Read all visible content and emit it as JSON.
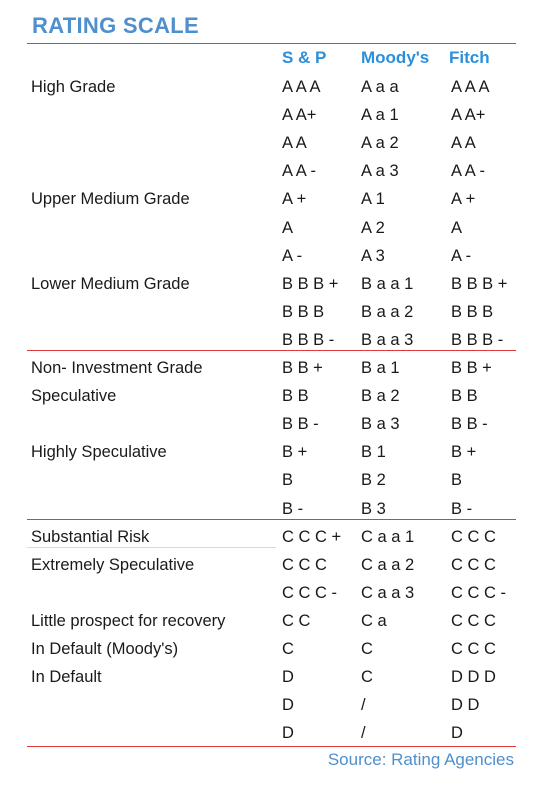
{
  "title": "RATING SCALE",
  "columns": [
    "S & P",
    "Moody's",
    "Fitch"
  ],
  "rows": [
    {
      "label": "High Grade",
      "sp": "A A A",
      "moodys": "A a a",
      "fitch": "A A A"
    },
    {
      "label": "",
      "sp": "A A+",
      "moodys": "A a 1",
      "fitch": "A A+"
    },
    {
      "label": "",
      "sp": "A A",
      "moodys": "A a 2",
      "fitch": "A A"
    },
    {
      "label": "",
      "sp": "A A -",
      "moodys": "A a 3",
      "fitch": "A A -"
    },
    {
      "label": "Upper Medium Grade",
      "sp": "A +",
      "moodys": "A 1",
      "fitch": "A +"
    },
    {
      "label": "",
      "sp": "A",
      "moodys": "A 2",
      "fitch": "A"
    },
    {
      "label": "",
      "sp": "A -",
      "moodys": "A 3",
      "fitch": "A -"
    },
    {
      "label": "Lower Medium Grade",
      "sp": "B B B +",
      "moodys": "B a a 1",
      "fitch": "B B B +"
    },
    {
      "label": "",
      "sp": "B B B",
      "moodys": "B a a 2",
      "fitch": "B B B"
    },
    {
      "label": "",
      "sp": "B B B -",
      "moodys": "B a a 3",
      "fitch": "B B B -"
    },
    {
      "label": "Non- Investment Grade",
      "sp": "B B +",
      "moodys": "B a 1",
      "fitch": "B B +"
    },
    {
      "label": "Speculative",
      "sp": "B B",
      "moodys": "B a 2",
      "fitch": "B B"
    },
    {
      "label": "",
      "sp": "B B  -",
      "moodys": "B a 3",
      "fitch": "B B -"
    },
    {
      "label": "Highly Speculative",
      "sp": "B +",
      "moodys": "B 1",
      "fitch": "B +"
    },
    {
      "label": "",
      "sp": "B",
      "moodys": "B 2",
      "fitch": "B"
    },
    {
      "label": "",
      "sp": "B -",
      "moodys": "B 3",
      "fitch": "B -"
    },
    {
      "label": "Substantial Risk",
      "sp": "C C C +",
      "moodys": "C a a 1",
      "fitch": "C C C"
    },
    {
      "label": "Extremely Speculative",
      "sp": "C C C",
      "moodys": "C a a 2",
      "fitch": "C C C"
    },
    {
      "label": "",
      "sp": "C C C -",
      "moodys": "C a a 3",
      "fitch": "C C C -"
    },
    {
      "label": "Little prospect for recovery",
      "sp": "C C",
      "moodys": "C a",
      "fitch": "C C  C"
    },
    {
      "label": "In Default  (Moody's)",
      "sp": "C",
      "moodys": "C",
      "fitch": "C C C"
    },
    {
      "label": "In Default",
      "sp": "D",
      "moodys": "C",
      "fitch": "D D D"
    },
    {
      "label": "",
      "sp": "D",
      "moodys": "/",
      "fitch": "D D"
    },
    {
      "label": "",
      "sp": "D",
      "moodys": "/",
      "fitch": "D"
    }
  ],
  "source": "Source: Rating Agencies",
  "colors": {
    "title": "#4f8fcc",
    "header": "#2e8fd9",
    "divider": "#e0393e"
  }
}
